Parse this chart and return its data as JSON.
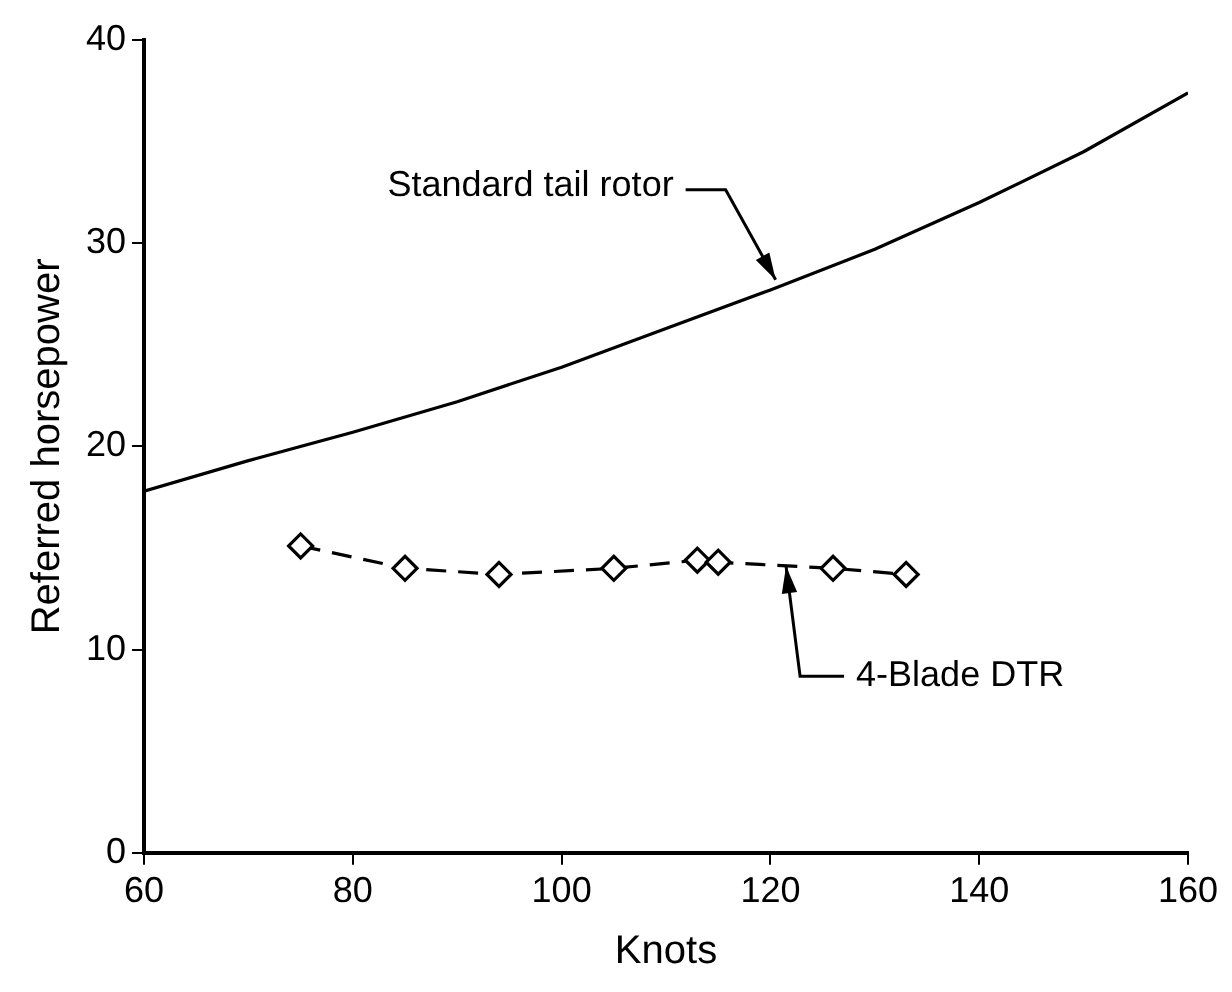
{
  "chart_data": {
    "type": "line",
    "xlabel": "Knots",
    "ylabel": "Referred horsepower",
    "xlim": [
      60,
      160
    ],
    "xticks": [
      60,
      80,
      100,
      120,
      140,
      160
    ],
    "ylim": [
      0,
      40
    ],
    "yticks": [
      0,
      10,
      20,
      30,
      40
    ],
    "grid": false,
    "legend": false,
    "series": [
      {
        "color": "#000000",
        "marker": "none",
        "line_style": "solid",
        "x": [
          60,
          70,
          80,
          90,
          100,
          110,
          120,
          130,
          140,
          150,
          160
        ],
        "values": [
          17.8,
          19.3,
          20.7,
          22.2,
          23.9,
          25.8,
          27.7,
          29.7,
          32.0,
          34.5,
          37.4
        ]
      },
      {
        "color": "#000000",
        "marker": "diamond",
        "line_style": "dashed",
        "x": [
          75,
          85,
          94,
          105,
          113,
          115,
          126,
          133
        ],
        "values": [
          15.1,
          14.0,
          13.7,
          14.0,
          14.4,
          14.3,
          14.0,
          13.7
        ]
      }
    ],
    "annotations": [
      {
        "text": "Standard tail rotor",
        "x": 120.5,
        "y": 28.2
      },
      {
        "text": "4-Blade DTR",
        "x": 121.5,
        "y": 14.1
      }
    ]
  }
}
